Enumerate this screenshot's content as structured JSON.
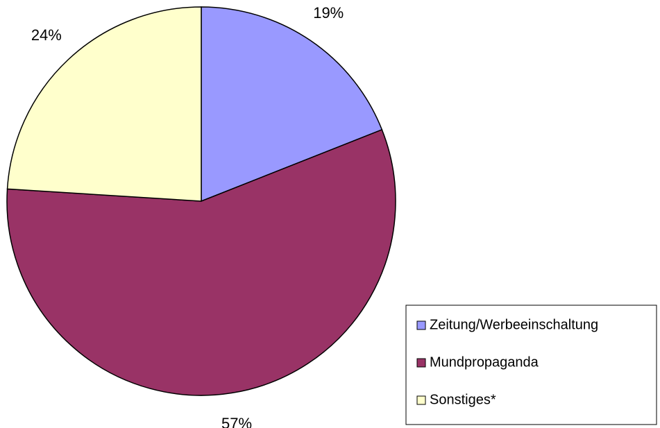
{
  "chart_data": {
    "type": "pie",
    "categories": [
      "Zeitung/Werbeeinschaltung",
      "Mundpropaganda",
      "Sonstiges*"
    ],
    "values": [
      19,
      57,
      24
    ],
    "value_labels": [
      "19%",
      "57%",
      "24%"
    ],
    "colors": [
      "#9999ff",
      "#993366",
      "#ffffcc"
    ],
    "legend": "lower right"
  }
}
